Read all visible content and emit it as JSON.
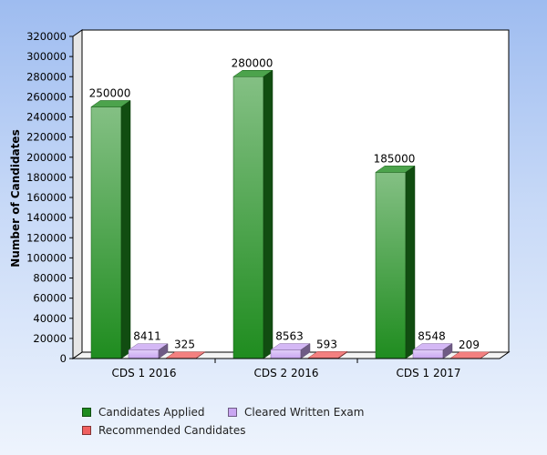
{
  "chart_data": {
    "type": "bar",
    "title": "",
    "xlabel": "",
    "ylabel": "Number of Candidates",
    "categories": [
      "CDS 1 2016",
      "CDS 2 2016",
      "CDS 1 2017"
    ],
    "series": [
      {
        "name": "Candidates Applied",
        "values": [
          250000,
          280000,
          185000
        ],
        "color": "#1f8c1f"
      },
      {
        "name": "Cleared Written Exam",
        "values": [
          8411,
          8563,
          8548
        ],
        "color": "#c9a6f2"
      },
      {
        "name": "Recommended Candidates",
        "values": [
          325,
          593,
          209
        ],
        "color": "#f06060"
      }
    ],
    "ylim": [
      0,
      320000
    ],
    "yticks": [
      0,
      20000,
      40000,
      60000,
      80000,
      100000,
      120000,
      140000,
      160000,
      180000,
      200000,
      220000,
      240000,
      260000,
      280000,
      300000,
      320000
    ],
    "grid": false,
    "legend_position": "bottom",
    "style": "3d-bars"
  }
}
